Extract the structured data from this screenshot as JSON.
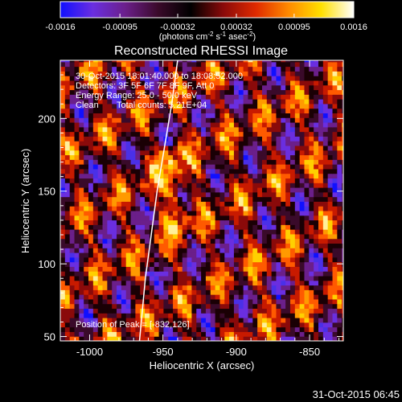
{
  "colorbar": {
    "ticks": [
      "-0.0016",
      "-0.00095",
      "-0.00032",
      "0.00032",
      "0.00095",
      "0.0016"
    ],
    "tick_values": [
      -0.0016,
      -0.00095,
      -0.00032,
      0.00032,
      0.00095,
      0.0016
    ],
    "range": [
      -0.0016,
      0.0016
    ],
    "colors": [
      "#1010ff",
      "#6a2ee0",
      "#6b1f8a",
      "#3a0a2a",
      "#000000",
      "#8a0a0a",
      "#e02a00",
      "#ff8a00",
      "#ffe000",
      "#ffffff"
    ]
  },
  "annotations": {
    "time": "30-Oct-2015 18:01:40.000 to 18:08:52.000",
    "detectors": "Detectors: 3F 5F 6F 7F 8F 9F, Att 0",
    "energy": "Energy Range: 25.0 - 50.0 keV",
    "clean_label": "Clean",
    "total_counts": "Total counts: 5.21E+04",
    "peak": "Position of Peak = [-832,126]"
  },
  "footer": {
    "timestamp": "31-Oct-2015 06:45"
  },
  "chart_data": {
    "type": "heatmap",
    "title": "Reconstructed RHESSI Image",
    "xlabel": "Heliocentric X (arcsec)",
    "ylabel": "Heliocentric Y (arcsec)",
    "colorbar_label": "(photons cm",
    "colorbar_label_exp1": "-2",
    "colorbar_label_mid": " s",
    "colorbar_label_exp2": "-1",
    "colorbar_label_end": " asec",
    "colorbar_label_exp3": "-2",
    "colorbar_label_close": ")",
    "xlim": [
      -1020,
      -827
    ],
    "ylim": [
      47,
      240
    ],
    "xticks": [
      -1000,
      -950,
      -900,
      -850
    ],
    "xtick_labels": [
      "-1000",
      "-950",
      "-900",
      "-850"
    ],
    "yticks": [
      50,
      100,
      150,
      200
    ],
    "ytick_labels": [
      "50",
      "100",
      "150",
      "200"
    ],
    "limb_curve": {
      "x": [
        -940,
        -944,
        -949,
        -954,
        -958,
        -962,
        -966
      ],
      "y": [
        240,
        210,
        180,
        150,
        120,
        90,
        47
      ]
    },
    "peak_position": [
      -832,
      126
    ],
    "pixel_size": 3.2
  }
}
